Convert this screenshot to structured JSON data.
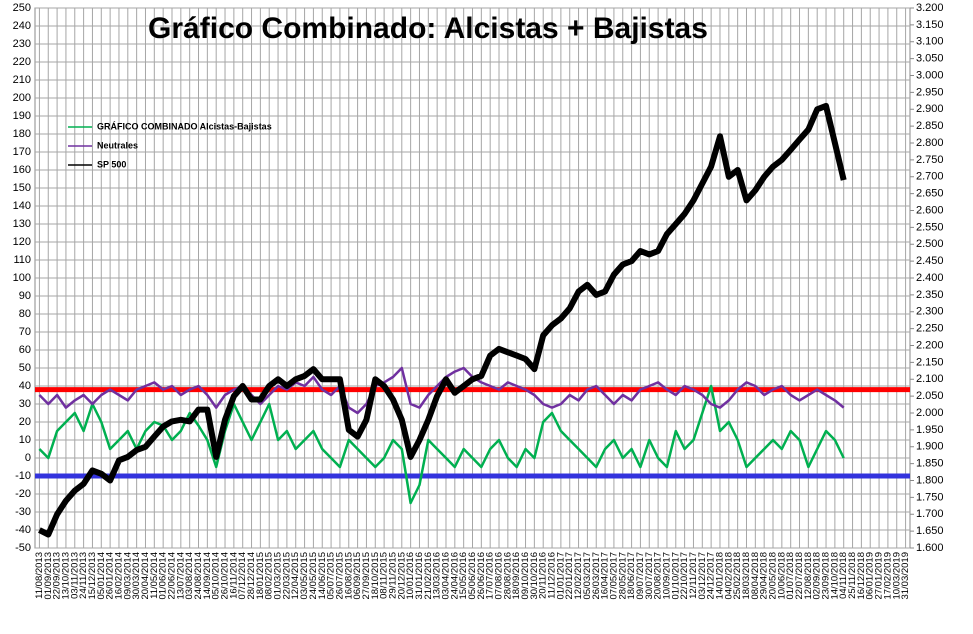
{
  "chart_data": {
    "type": "line",
    "title": "Gráfico Combinado: Alcistas + Bajistas",
    "categories": [
      "11/08/2013",
      "01/09/2013",
      "22/09/2013",
      "13/10/2013",
      "03/11/2013",
      "24/11/2013",
      "15/12/2013",
      "05/01/2014",
      "26/01/2014",
      "16/02/2014",
      "09/03/2014",
      "30/03/2014",
      "20/04/2014",
      "11/05/2014",
      "01/06/2014",
      "22/06/2014",
      "13/07/2014",
      "03/08/2014",
      "24/08/2014",
      "14/09/2014",
      "05/10/2014",
      "26/10/2014",
      "16/11/2014",
      "07/12/2014",
      "28/12/2014",
      "18/01/2015",
      "08/02/2015",
      "01/03/2015",
      "22/03/2015",
      "12/04/2015",
      "03/05/2015",
      "24/05/2015",
      "14/06/2015",
      "05/07/2015",
      "26/07/2015",
      "16/08/2015",
      "06/09/2015",
      "27/09/2015",
      "18/10/2015",
      "08/11/2015",
      "29/11/2015",
      "20/12/2015",
      "10/01/2016",
      "31/01/2016",
      "21/02/2016",
      "13/03/2016",
      "03/04/2016",
      "24/04/2016",
      "15/05/2016",
      "05/06/2016",
      "26/06/2016",
      "17/07/2016",
      "07/08/2016",
      "28/08/2016",
      "18/09/2016",
      "09/10/2016",
      "30/10/2016",
      "20/11/2016",
      "11/12/2016",
      "01/01/2017",
      "22/01/2017",
      "12/02/2017",
      "05/03/2017",
      "26/03/2017",
      "16/04/2017",
      "07/05/2017",
      "28/05/2017",
      "18/06/2017",
      "09/07/2017",
      "30/07/2017",
      "20/08/2017",
      "10/09/2017",
      "01/10/2017",
      "22/10/2017",
      "12/11/2017",
      "03/12/2017",
      "24/12/2017",
      "14/01/2018",
      "04/02/2018",
      "25/02/2018",
      "18/03/2018",
      "08/04/2018",
      "29/04/2018",
      "20/05/2018",
      "10/06/2018",
      "01/07/2018",
      "22/07/2018",
      "12/08/2018",
      "02/09/2018",
      "23/09/2018",
      "14/10/2018",
      "04/11/2018",
      "25/11/2018",
      "16/12/2018",
      "06/01/2019",
      "27/01/2019",
      "17/02/2019",
      "10/03/2019",
      "31/03/2019"
    ],
    "series": [
      {
        "name": "GRÁFICO COMBINADO Alcistas-Bajistas",
        "color": "#00b050",
        "values": [
          5,
          0,
          15,
          20,
          25,
          15,
          30,
          20,
          5,
          10,
          15,
          5,
          15,
          20,
          18,
          10,
          15,
          25,
          18,
          10,
          -5,
          15,
          30,
          20,
          10,
          20,
          30,
          10,
          15,
          5,
          10,
          15,
          5,
          0,
          -5,
          10,
          5,
          0,
          -5,
          0,
          10,
          5,
          -25,
          -15,
          10,
          5,
          0,
          -5,
          5,
          0,
          -5,
          5,
          10,
          0,
          -5,
          5,
          0,
          20,
          25,
          15,
          10,
          5,
          0,
          -5,
          5,
          10,
          0,
          5,
          -5,
          10,
          0,
          -5,
          15,
          5,
          10,
          25,
          40,
          15,
          20,
          10,
          -5,
          0,
          5,
          10,
          5,
          15,
          10,
          -5,
          5,
          15,
          10,
          0,
          null,
          null,
          null,
          null,
          null,
          null,
          null
        ]
      },
      {
        "name": "Neutrales",
        "color": "#7030a0",
        "values": [
          35,
          30,
          35,
          28,
          32,
          35,
          30,
          35,
          38,
          35,
          32,
          38,
          40,
          42,
          38,
          40,
          35,
          38,
          40,
          35,
          28,
          35,
          38,
          40,
          35,
          30,
          35,
          40,
          38,
          42,
          40,
          45,
          38,
          35,
          40,
          28,
          25,
          30,
          40,
          42,
          45,
          50,
          30,
          28,
          35,
          40,
          45,
          48,
          50,
          45,
          42,
          40,
          38,
          42,
          40,
          38,
          35,
          30,
          28,
          30,
          35,
          32,
          38,
          40,
          35,
          30,
          35,
          32,
          38,
          40,
          42,
          38,
          35,
          40,
          38,
          35,
          30,
          28,
          32,
          38,
          42,
          40,
          35,
          38,
          40,
          35,
          32,
          35,
          38,
          35,
          32,
          28,
          null,
          null,
          null,
          null,
          null,
          null,
          null
        ]
      },
      {
        "name": "SP 500",
        "color": "#000000",
        "axis": "y2",
        "values": [
          1653,
          1640,
          1700,
          1740,
          1770,
          1790,
          1830,
          1820,
          1800,
          1860,
          1870,
          1890,
          1900,
          1930,
          1960,
          1975,
          1980,
          1975,
          2010,
          2010,
          1870,
          1980,
          2050,
          2080,
          2040,
          2040,
          2080,
          2100,
          2080,
          2100,
          2110,
          2130,
          2100,
          2100,
          2100,
          1950,
          1930,
          1980,
          2100,
          2080,
          2040,
          1980,
          1870,
          1920,
          1980,
          2050,
          2100,
          2060,
          2080,
          2100,
          2110,
          2170,
          2190,
          2180,
          2170,
          2160,
          2130,
          2230,
          2260,
          2280,
          2310,
          2360,
          2380,
          2350,
          2360,
          2410,
          2440,
          2450,
          2480,
          2470,
          2480,
          2530,
          2560,
          2590,
          2630,
          2680,
          2730,
          2820,
          2700,
          2720,
          2630,
          2660,
          2700,
          2730,
          2750,
          2780,
          2810,
          2840,
          2900,
          2910,
          2800,
          2690,
          null,
          null,
          null,
          null,
          null,
          null,
          null
        ]
      }
    ],
    "reference_lines": [
      {
        "value": 38,
        "color": "#ff0000"
      },
      {
        "value": -10,
        "color": "#3333dd"
      }
    ],
    "ylim": [
      -50,
      250
    ],
    "yticks": [
      -50,
      -40,
      -30,
      -20,
      -10,
      0,
      10,
      20,
      30,
      40,
      50,
      60,
      70,
      80,
      90,
      100,
      110,
      120,
      130,
      140,
      150,
      160,
      170,
      180,
      190,
      200,
      210,
      220,
      230,
      240,
      250
    ],
    "y2lim": [
      1600,
      3200
    ],
    "y2ticks": [
      {
        "value": 1600,
        "label": "1.600"
      },
      {
        "value": 1650,
        "label": "1.650"
      },
      {
        "value": 1700,
        "label": "1.700"
      },
      {
        "value": 1750,
        "label": "1.750"
      },
      {
        "value": 1800,
        "label": "1.800"
      },
      {
        "value": 1850,
        "label": "1.850"
      },
      {
        "value": 1900,
        "label": "1.900"
      },
      {
        "value": 1950,
        "label": "1.950"
      },
      {
        "value": 2000,
        "label": "2.000"
      },
      {
        "value": 2050,
        "label": "2.050"
      },
      {
        "value": 2100,
        "label": "2.100"
      },
      {
        "value": 2150,
        "label": "2.150"
      },
      {
        "value": 2200,
        "label": "2.200"
      },
      {
        "value": 2250,
        "label": "2.250"
      },
      {
        "value": 2300,
        "label": "2.300"
      },
      {
        "value": 2350,
        "label": "2.350"
      },
      {
        "value": 2400,
        "label": "2.400"
      },
      {
        "value": 2450,
        "label": "2.450"
      },
      {
        "value": 2500,
        "label": "2.500"
      },
      {
        "value": 2550,
        "label": "2.550"
      },
      {
        "value": 2600,
        "label": "2.600"
      },
      {
        "value": 2650,
        "label": "2.650"
      },
      {
        "value": 2700,
        "label": "2.700"
      },
      {
        "value": 2750,
        "label": "2.750"
      },
      {
        "value": 2800,
        "label": "2.800"
      },
      {
        "value": 2850,
        "label": "2.850"
      },
      {
        "value": 2900,
        "label": "2.900"
      },
      {
        "value": 2950,
        "label": "2.950"
      },
      {
        "value": 3000,
        "label": "3.000"
      },
      {
        "value": 3050,
        "label": "3.050"
      },
      {
        "value": 3100,
        "label": "3.100"
      },
      {
        "value": 3150,
        "label": "3.150"
      },
      {
        "value": 3200,
        "label": "3.200"
      }
    ],
    "grid": true
  }
}
